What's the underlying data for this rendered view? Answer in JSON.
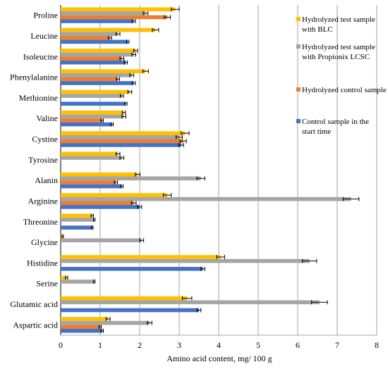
{
  "chart_data": {
    "type": "bar",
    "orientation": "horizontal",
    "categories": [
      "Proline",
      "Leucine",
      "Isoleucine",
      "Phenylalanine",
      "Methionine",
      "Valine",
      "Cystine",
      "Tyrosine",
      "Alanin",
      "Arginine",
      "Threonine",
      "Glycine",
      "Histidine",
      "Serine",
      "Glutamic acid",
      "Aspartic acid"
    ],
    "series": [
      {
        "name": "Hydrolyzed test sample with BLC",
        "color": "#FFC000",
        "values": [
          2.9,
          2.4,
          1.9,
          2.15,
          1.75,
          1.6,
          3.15,
          1.45,
          1.95,
          2.7,
          0.8,
          0.05,
          4.05,
          0.15,
          3.2,
          1.2
        ],
        "errors": [
          0.1,
          0.08,
          0.05,
          0.07,
          0.05,
          0.04,
          0.1,
          0.05,
          0.06,
          0.1,
          0.03,
          0.02,
          0.1,
          0.03,
          0.12,
          0.05
        ]
      },
      {
        "name": "Hydrolyzed test sample with Propionix LCSC",
        "color": "#A5A5A5",
        "values": [
          2.15,
          1.45,
          1.85,
          1.8,
          1.55,
          1.6,
          3.0,
          1.55,
          3.55,
          7.35,
          0.85,
          2.05,
          6.3,
          0.85,
          6.55,
          2.25
        ],
        "errors": [
          0.06,
          0.05,
          0.05,
          0.05,
          0.04,
          0.05,
          0.08,
          0.05,
          0.1,
          0.2,
          0.02,
          0.05,
          0.18,
          0.02,
          0.2,
          0.06
        ]
      },
      {
        "name": "Hydrolyzed control sample",
        "color": "#ED7D31",
        "values": [
          2.7,
          1.25,
          1.55,
          1.45,
          0.0,
          1.05,
          3.1,
          0.0,
          1.4,
          1.85,
          0.0,
          0.0,
          0.0,
          0.0,
          0.0,
          1.0
        ],
        "errors": [
          0.08,
          0.04,
          0.05,
          0.04,
          0.0,
          0.03,
          0.08,
          0.0,
          0.04,
          0.06,
          0.0,
          0.0,
          0.0,
          0.0,
          0.0,
          0.03
        ]
      },
      {
        "name": "Control sample in the start time",
        "color": "#4472C4",
        "values": [
          1.85,
          1.7,
          1.65,
          1.85,
          1.65,
          1.3,
          3.05,
          0.0,
          1.55,
          2.0,
          0.8,
          0.0,
          3.6,
          0.0,
          3.5,
          1.05
        ],
        "errors": [
          0.04,
          0.03,
          0.04,
          0.04,
          0.03,
          0.03,
          0.06,
          0.0,
          0.03,
          0.05,
          0.02,
          0.0,
          0.05,
          0.0,
          0.05,
          0.03
        ]
      }
    ],
    "xlabel": "Amino acid content, mg/ 100 g",
    "xlim": [
      0,
      8
    ],
    "xticks": [
      0,
      1,
      2,
      3,
      4,
      5,
      6,
      7,
      8
    ],
    "grid": "vertical",
    "legend_position": "right"
  }
}
